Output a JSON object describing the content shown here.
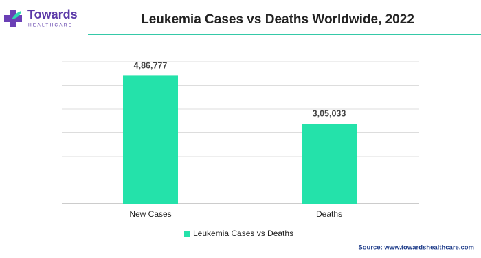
{
  "chart_data": {
    "type": "bar",
    "title": "Leukemia Cases vs Deaths Worldwide, 2022",
    "logo": {
      "name": "Towards",
      "tagline": "HEALTHCARE"
    },
    "source": "Source: www.towardshealthcare.com",
    "categories": [
      "New Cases",
      "Deaths"
    ],
    "series": [
      {
        "name": "Leukemia Cases vs Deaths",
        "color": "#24e2aa",
        "values": [
          486777,
          305033
        ],
        "value_labels": [
          "4,86,777",
          "3,05,033"
        ]
      }
    ],
    "ylim": [
      0,
      540000
    ],
    "yticks": [
      0,
      90000,
      180000,
      270000,
      360000,
      450000,
      540000
    ],
    "grid": true
  }
}
